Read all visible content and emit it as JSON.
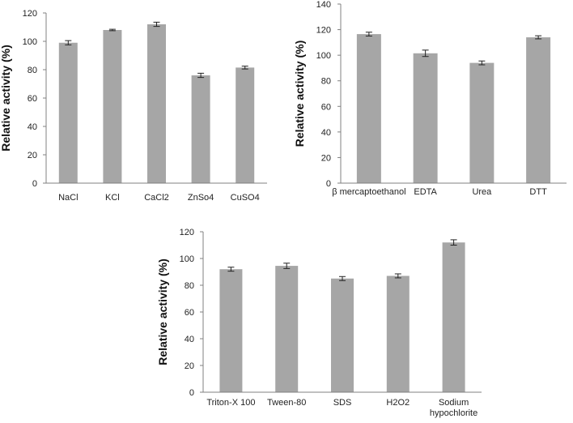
{
  "chart_data": [
    {
      "type": "bar",
      "title": "",
      "xlabel": "",
      "ylabel": "Relative activity (%)",
      "categories": [
        "NaCl",
        "KCl",
        "CaCl2",
        "ZnSo4",
        "CuSO4"
      ],
      "values": [
        99,
        108,
        112,
        76,
        81.5
      ],
      "errors": [
        1.5,
        0.5,
        1.5,
        1.5,
        1
      ],
      "ylim": [
        0,
        120
      ],
      "yticks": [
        "0",
        "20",
        "40",
        "60",
        "80",
        "100",
        "120"
      ]
    },
    {
      "type": "bar",
      "title": "",
      "xlabel": "",
      "ylabel": "Relative activity (%)",
      "categories": [
        "β mercaptoethanol",
        "EDTA",
        "Urea",
        "DTT"
      ],
      "values": [
        116.5,
        101.5,
        94,
        114
      ],
      "errors": [
        1.5,
        2.5,
        1.5,
        1.2
      ],
      "ylim": [
        0,
        140
      ],
      "yticks": [
        "0",
        "20",
        "40",
        "60",
        "80",
        "100",
        "120",
        "140"
      ]
    },
    {
      "type": "bar",
      "title": "",
      "xlabel": "",
      "ylabel": "Relative activity (%)",
      "categories": [
        "Triton-X 100",
        "Tween-80",
        "SDS",
        "H2O2",
        "Sodium hypochlorite"
      ],
      "category_lines": [
        [
          "Triton-X 100"
        ],
        [
          "Tween-80"
        ],
        [
          "SDS"
        ],
        [
          "H2O2"
        ],
        [
          "Sodium",
          "hypochlorite"
        ]
      ],
      "values": [
        92,
        94.5,
        85,
        87,
        112
      ],
      "errors": [
        1.5,
        2,
        1.5,
        1.5,
        2
      ],
      "ylim": [
        0,
        120
      ],
      "yticks": [
        "0",
        "20",
        "40",
        "60",
        "80",
        "100",
        "120"
      ]
    }
  ]
}
